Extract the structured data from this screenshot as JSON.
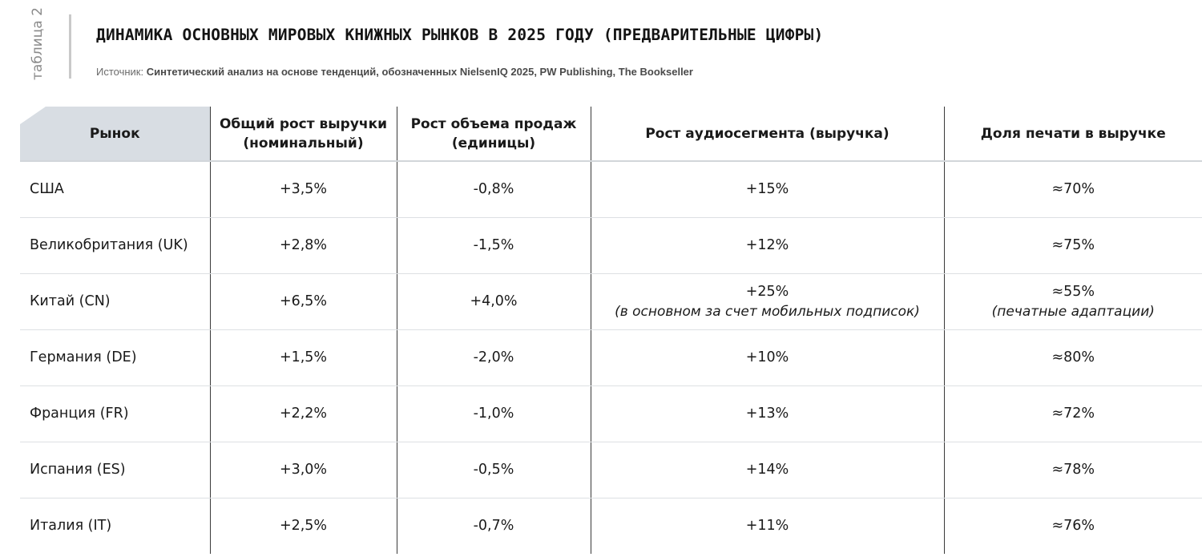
{
  "side_label": "таблица 2",
  "title": "ДИНАМИКА ОСНОВНЫХ МИРОВЫХ КНИЖНЫХ РЫНКОВ В 2025 ГОДУ (ПРЕДВАРИТЕЛЬНЫЕ ЦИФРЫ)",
  "source": {
    "prefix": "Источник: ",
    "text": "Синтетический анализ на основе тенденций, обозначенных NielsenIQ 2025, PW Publishing, The Bookseller"
  },
  "table": {
    "headers": [
      "Рынок",
      "Общий рост выручки (номинальный)",
      "Рост объема продаж (единицы)",
      "Рост аудиосегмента (выручка)",
      "Доля печати в выручке"
    ],
    "rows": [
      {
        "market": "США",
        "revenue": "+3,5%",
        "volume": "-0,8%",
        "audio": "+15%",
        "audio_note": "",
        "print": "≈70%",
        "print_note": ""
      },
      {
        "market": "Великобритания (UK)",
        "revenue": "+2,8%",
        "volume": "-1,5%",
        "audio": "+12%",
        "audio_note": "",
        "print": "≈75%",
        "print_note": ""
      },
      {
        "market": "Китай (CN)",
        "revenue": "+6,5%",
        "volume": "+4,0%",
        "audio": "+25%",
        "audio_note": "(в основном за счет мобильных подписок)",
        "print": "≈55%",
        "print_note": "(печатные адаптации)"
      },
      {
        "market": "Германия (DE)",
        "revenue": "+1,5%",
        "volume": "-2,0%",
        "audio": "+10%",
        "audio_note": "",
        "print": "≈80%",
        "print_note": ""
      },
      {
        "market": "Франция (FR)",
        "revenue": "+2,2%",
        "volume": "-1,0%",
        "audio": "+13%",
        "audio_note": "",
        "print": "≈72%",
        "print_note": ""
      },
      {
        "market": "Испания (ES)",
        "revenue": "+3,0%",
        "volume": "-0,5%",
        "audio": "+14%",
        "audio_note": "",
        "print": "≈78%",
        "print_note": ""
      },
      {
        "market": "Италия (IT)",
        "revenue": "+2,5%",
        "volume": "-0,7%",
        "audio": "+11%",
        "audio_note": "",
        "print": "≈76%",
        "print_note": ""
      }
    ]
  }
}
